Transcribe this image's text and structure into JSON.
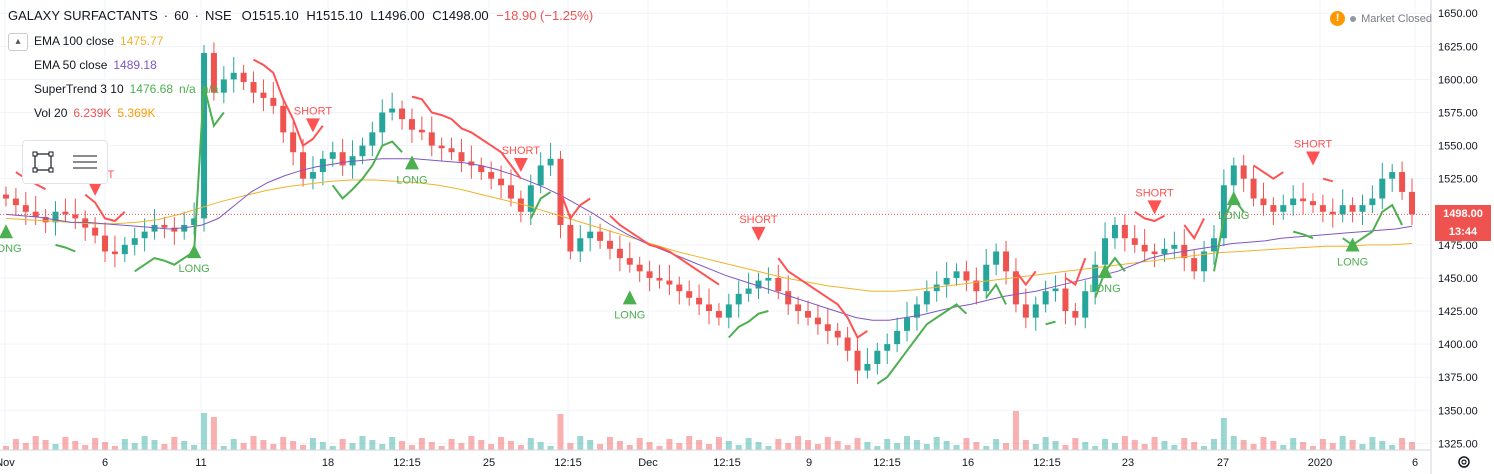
{
  "header": {
    "symbol": "GALAXY SURFACTANTS",
    "interval": "60",
    "exchange": "NSE",
    "ohlc": {
      "o": "O1515.10",
      "h": "H1515.10",
      "l": "L1496.00",
      "c": "C1498.00",
      "chg": "−18.90 (−1.25%)"
    }
  },
  "indicators": [
    {
      "name": "EMA 100 close",
      "values": [
        "1475.77"
      ],
      "colors": [
        "#f0b429"
      ]
    },
    {
      "name": "EMA 50 close",
      "values": [
        "1489.18"
      ],
      "colors": [
        "#7e57c2"
      ]
    },
    {
      "name": "SuperTrend 3 10",
      "values": [
        "1476.68",
        "n/a",
        "n/a"
      ],
      "colors": [
        "#4caf50",
        "#4caf50",
        "#4caf50"
      ]
    },
    {
      "name": "Vol 20",
      "values": [
        "6.239K",
        "5.369K"
      ],
      "colors": [
        "#ef5350",
        "#ff9800"
      ]
    }
  ],
  "status": {
    "market": "Market Closed"
  },
  "price_axis": {
    "ticks": [
      "1650.00",
      "1625.00",
      "1600.00",
      "1575.00",
      "1550.00",
      "1525.00",
      "1475.00",
      "1450.00",
      "1425.00",
      "1400.00",
      "1375.00",
      "1350.00",
      "1325.00"
    ],
    "last_price": "1498.00",
    "countdown": "13:44"
  },
  "time_axis": {
    "labels": [
      "Nov",
      "6",
      "11",
      "18",
      "12:15",
      "25",
      "12:15",
      "Dec",
      "12:15",
      "9",
      "12:15",
      "16",
      "12:15",
      "23",
      "27",
      "2020",
      "6"
    ]
  },
  "signals": {
    "long": "LONG",
    "short": "SHORT"
  },
  "colors": {
    "up": "#26a69a",
    "down": "#ef5350",
    "st_up": "#4caf50",
    "st_down": "#ff5252",
    "ema100": "#f0b429",
    "ema50": "#7e57c2"
  },
  "chart_data": {
    "type": "candlestick",
    "ylim": [
      1320,
      1660
    ],
    "price_ticks": [
      1650,
      1625,
      1600,
      1575,
      1550,
      1525,
      1500,
      1475,
      1450,
      1425,
      1400,
      1375,
      1350,
      1325
    ],
    "last_price": 1498,
    "closes": [
      1510,
      1505,
      1500,
      1496,
      1492,
      1500,
      1498,
      1495,
      1488,
      1482,
      1470,
      1468,
      1475,
      1480,
      1485,
      1490,
      1488,
      1485,
      1490,
      1495,
      1620,
      1590,
      1600,
      1605,
      1598,
      1590,
      1586,
      1580,
      1560,
      1545,
      1525,
      1530,
      1540,
      1545,
      1535,
      1542,
      1550,
      1560,
      1575,
      1578,
      1570,
      1562,
      1560,
      1550,
      1548,
      1545,
      1538,
      1535,
      1530,
      1525,
      1520,
      1510,
      1500,
      1520,
      1535,
      1540,
      1490,
      1470,
      1480,
      1485,
      1478,
      1472,
      1465,
      1460,
      1455,
      1450,
      1448,
      1445,
      1440,
      1435,
      1430,
      1425,
      1420,
      1430,
      1438,
      1442,
      1448,
      1450,
      1440,
      1430,
      1425,
      1420,
      1415,
      1410,
      1405,
      1395,
      1380,
      1385,
      1395,
      1400,
      1410,
      1420,
      1430,
      1440,
      1445,
      1450,
      1455,
      1448,
      1440,
      1460,
      1470,
      1455,
      1430,
      1420,
      1430,
      1440,
      1442,
      1425,
      1420,
      1440,
      1460,
      1480,
      1490,
      1480,
      1475,
      1470,
      1468,
      1472,
      1475,
      1465,
      1455,
      1470,
      1480,
      1520,
      1535,
      1525,
      1510,
      1505,
      1500,
      1505,
      1510,
      1508,
      1505,
      1500,
      1498,
      1505,
      1500,
      1505,
      1510,
      1525,
      1530,
      1515,
      1498
    ],
    "ema50": [
      1498,
      1497,
      1496,
      1494,
      1492,
      1492,
      1491,
      1490,
      1489,
      1488,
      1487,
      1488,
      1490,
      1495,
      1505,
      1515,
      1522,
      1527,
      1531,
      1534,
      1536,
      1538,
      1539,
      1540,
      1540,
      1540,
      1539,
      1538,
      1537,
      1535,
      1532,
      1528,
      1523,
      1518,
      1512,
      1505,
      1498,
      1490,
      1483,
      1477,
      1472,
      1467,
      1462,
      1457,
      1452,
      1448,
      1444,
      1440,
      1436,
      1432,
      1428,
      1424,
      1420,
      1418,
      1418,
      1420,
      1422,
      1425,
      1428,
      1430,
      1433,
      1436,
      1438,
      1440,
      1443,
      1446,
      1449,
      1452,
      1455,
      1460,
      1465,
      1468,
      1470,
      1472,
      1474,
      1476,
      1477,
      1478,
      1480,
      1481,
      1482,
      1483,
      1484,
      1485,
      1486,
      1487,
      1489
    ],
    "ema100": [
      1495,
      1494,
      1493,
      1492,
      1491,
      1491,
      1492,
      1494,
      1498,
      1503,
      1508,
      1512,
      1516,
      1519,
      1521,
      1523,
      1524,
      1524,
      1523,
      1522,
      1520,
      1517,
      1513,
      1509,
      1505,
      1500,
      1495,
      1490,
      1485,
      1480,
      1475,
      1470,
      1466,
      1462,
      1458,
      1454,
      1450,
      1447,
      1444,
      1442,
      1440,
      1440,
      1441,
      1443,
      1445,
      1447,
      1449,
      1451,
      1453,
      1455,
      1457,
      1459,
      1461,
      1463,
      1465,
      1467,
      1469,
      1470,
      1471,
      1472,
      1473,
      1474,
      1474,
      1475,
      1475,
      1476
    ]
  }
}
